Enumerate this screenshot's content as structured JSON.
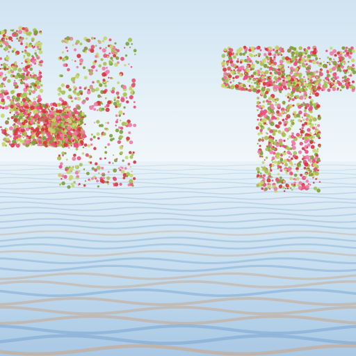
{
  "scene": {
    "sky_colors": [
      "#cfe3f1",
      "#e6f1f8",
      "#f2f8fb"
    ],
    "water_colors": [
      "#e8f2f8",
      "#b9d4ea",
      "#7fa9d2"
    ],
    "flower_colors": [
      "#d8353c",
      "#e8507a",
      "#f07aa6",
      "#c9d46a",
      "#a8bf4e",
      "#7f9e3a"
    ],
    "reflection_tint": "#c9a98f"
  }
}
